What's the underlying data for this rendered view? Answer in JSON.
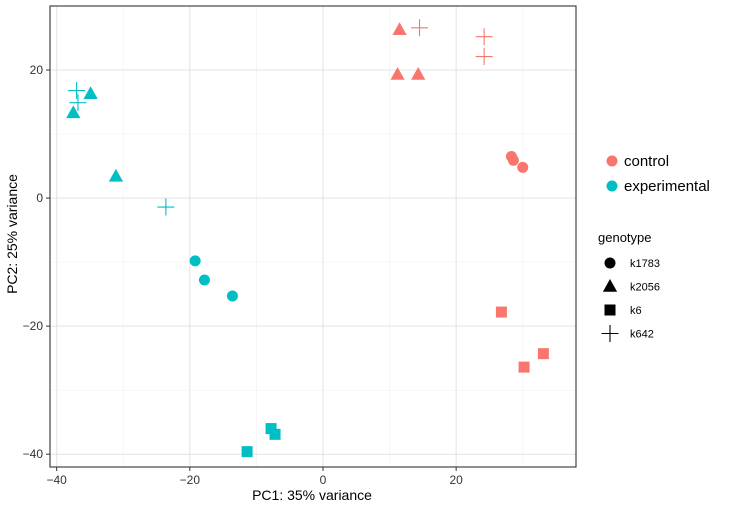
{
  "chart_data": {
    "type": "scatter",
    "title": "",
    "xlabel": "PC1: 35% variance",
    "ylabel": "PC2: 25% variance",
    "xlim": [
      -41,
      38
    ],
    "ylim": [
      -42,
      30
    ],
    "x_ticks": [
      -40,
      -20,
      0,
      20
    ],
    "y_ticks": [
      -40,
      -20,
      0,
      20
    ],
    "x_tick_labels": [
      "−40",
      "−20",
      "0",
      "20"
    ],
    "y_tick_labels": [
      "−40",
      "−20",
      "0",
      "20"
    ],
    "grid": true,
    "colors": {
      "control": "#F8766D",
      "experimental": "#00BFC4"
    },
    "color_legend": {
      "title": "",
      "entries": [
        "control",
        "experimental"
      ]
    },
    "shape_legend": {
      "title": "genotype",
      "entries": [
        {
          "label": "k1783",
          "shape": "circle"
        },
        {
          "label": "k2056",
          "shape": "triangle"
        },
        {
          "label": "k6",
          "shape": "square"
        },
        {
          "label": "k642",
          "shape": "plus"
        }
      ]
    },
    "points": [
      {
        "x": 11.5,
        "y": 26.3,
        "condition": "control",
        "genotype": "k2056"
      },
      {
        "x": 11.2,
        "y": 19.3,
        "condition": "control",
        "genotype": "k2056"
      },
      {
        "x": 14.3,
        "y": 19.3,
        "condition": "control",
        "genotype": "k2056"
      },
      {
        "x": 14.5,
        "y": 26.6,
        "condition": "control",
        "genotype": "k642"
      },
      {
        "x": 24.2,
        "y": 25.2,
        "condition": "control",
        "genotype": "k642"
      },
      {
        "x": 24.2,
        "y": 22.1,
        "condition": "control",
        "genotype": "k642"
      },
      {
        "x": 28.3,
        "y": 6.5,
        "condition": "control",
        "genotype": "k1783"
      },
      {
        "x": 28.6,
        "y": 5.9,
        "condition": "control",
        "genotype": "k1783"
      },
      {
        "x": 30.0,
        "y": 4.8,
        "condition": "control",
        "genotype": "k1783"
      },
      {
        "x": 26.8,
        "y": -17.8,
        "condition": "control",
        "genotype": "k6"
      },
      {
        "x": 33.1,
        "y": -24.3,
        "condition": "control",
        "genotype": "k6"
      },
      {
        "x": 30.2,
        "y": -26.4,
        "condition": "control",
        "genotype": "k6"
      },
      {
        "x": -37.5,
        "y": 13.3,
        "condition": "experimental",
        "genotype": "k2056"
      },
      {
        "x": -34.9,
        "y": 16.3,
        "condition": "experimental",
        "genotype": "k2056"
      },
      {
        "x": -31.1,
        "y": 3.4,
        "condition": "experimental",
        "genotype": "k2056"
      },
      {
        "x": -37.0,
        "y": 16.8,
        "condition": "experimental",
        "genotype": "k642"
      },
      {
        "x": -36.8,
        "y": 14.9,
        "condition": "experimental",
        "genotype": "k642"
      },
      {
        "x": -23.6,
        "y": -1.4,
        "condition": "experimental",
        "genotype": "k642"
      },
      {
        "x": -19.2,
        "y": -9.8,
        "condition": "experimental",
        "genotype": "k1783"
      },
      {
        "x": -17.8,
        "y": -12.8,
        "condition": "experimental",
        "genotype": "k1783"
      },
      {
        "x": -13.6,
        "y": -15.3,
        "condition": "experimental",
        "genotype": "k1783"
      },
      {
        "x": -7.8,
        "y": -36.0,
        "condition": "experimental",
        "genotype": "k6"
      },
      {
        "x": -7.2,
        "y": -36.9,
        "condition": "experimental",
        "genotype": "k6"
      },
      {
        "x": -11.4,
        "y": -39.6,
        "condition": "experimental",
        "genotype": "k6"
      }
    ]
  }
}
